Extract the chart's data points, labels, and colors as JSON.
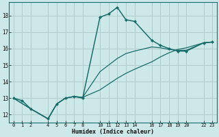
{
  "xlabel": "Humidex (Indice chaleur)",
  "bg_color": "#cce8e8",
  "grid_color": "#b0cccc",
  "line_color": "#1a6b6b",
  "xticks": [
    0,
    1,
    2,
    4,
    5,
    6,
    7,
    8,
    10,
    11,
    12,
    13,
    14,
    16,
    17,
    18,
    19,
    20,
    22,
    23
  ],
  "yticks": [
    12,
    13,
    14,
    15,
    16,
    17,
    18
  ],
  "xlim": [
    -0.5,
    23.5
  ],
  "ylim": [
    11.5,
    18.8
  ],
  "line1_x": [
    0,
    1,
    2,
    4,
    5,
    6,
    7,
    8,
    10,
    11,
    12,
    13,
    14,
    16,
    17,
    18,
    19,
    20,
    22,
    23
  ],
  "line1_y": [
    13.0,
    12.85,
    12.35,
    11.75,
    12.65,
    13.0,
    13.1,
    13.0,
    17.9,
    18.1,
    18.5,
    17.75,
    17.65,
    16.5,
    16.2,
    16.0,
    15.85,
    15.85,
    16.35,
    16.4
  ],
  "line2_x": [
    0,
    2,
    4,
    5,
    6,
    7,
    8,
    10,
    11,
    12,
    13,
    14,
    16,
    17,
    18,
    19,
    20,
    22,
    23
  ],
  "line2_y": [
    13.0,
    12.35,
    11.75,
    12.65,
    13.0,
    13.1,
    13.05,
    14.6,
    15.0,
    15.4,
    15.7,
    15.85,
    16.1,
    16.05,
    15.95,
    15.9,
    15.9,
    16.35,
    16.4
  ],
  "line3_x": [
    0,
    2,
    4,
    5,
    6,
    7,
    8,
    10,
    11,
    12,
    13,
    14,
    16,
    17,
    18,
    19,
    20,
    22,
    23
  ],
  "line3_y": [
    13.0,
    12.35,
    11.75,
    12.65,
    13.0,
    13.1,
    13.05,
    13.5,
    13.85,
    14.2,
    14.5,
    14.75,
    15.2,
    15.5,
    15.75,
    15.95,
    16.05,
    16.35,
    16.4
  ]
}
